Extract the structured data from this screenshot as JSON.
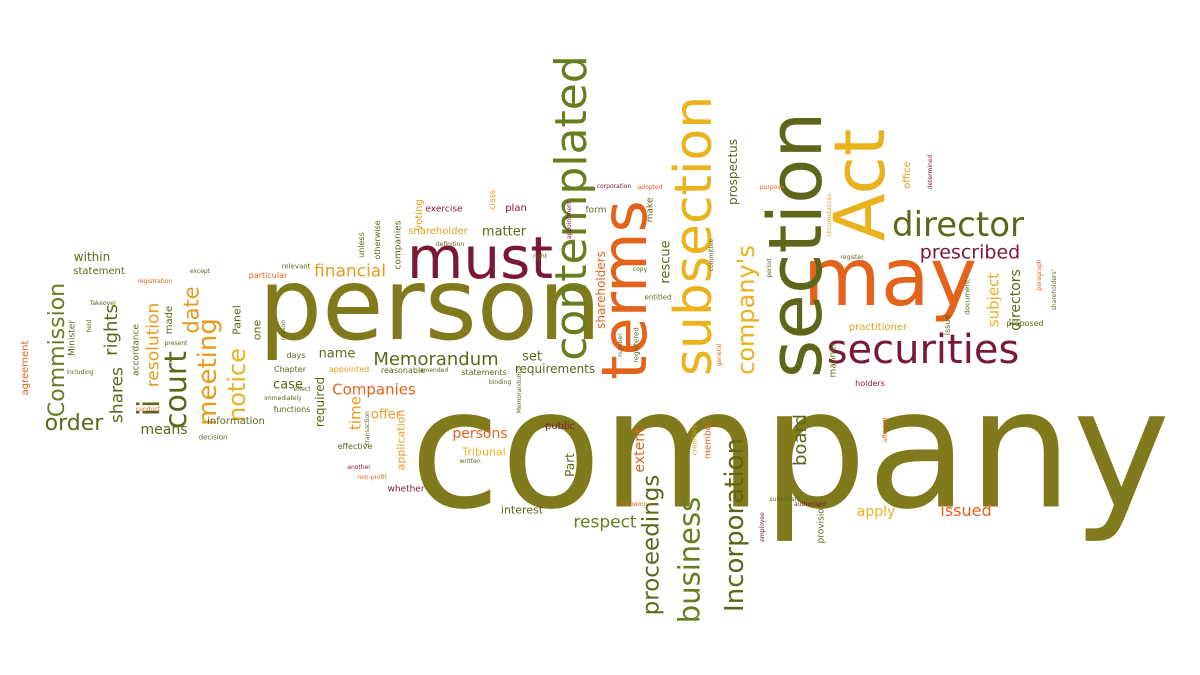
{
  "palette": {
    "olive": "#7f7a1c",
    "dark_olive": "#5e661a",
    "green": "#677e1f",
    "orange": "#e3631a",
    "amber": "#e79b1d",
    "yellow": "#eab21c",
    "maroon": "#7b1935",
    "gray": "#777777"
  },
  "words": [
    {
      "text": "company",
      "color": "olive"
    },
    {
      "text": "person",
      "color": "olive"
    },
    {
      "text": "may",
      "color": "orange"
    },
    {
      "text": "section",
      "color": "dark_olive"
    },
    {
      "text": "Act",
      "color": "yellow"
    },
    {
      "text": "must",
      "color": "maroon"
    },
    {
      "text": "terms",
      "color": "orange"
    },
    {
      "text": "subsection",
      "color": "yellow"
    },
    {
      "text": "contemplated",
      "color": "green"
    },
    {
      "text": "securities",
      "color": "maroon"
    },
    {
      "text": "director",
      "color": "dark_olive"
    },
    {
      "text": "company's",
      "color": "yellow"
    },
    {
      "text": "Incorporation",
      "color": "dark_olive"
    },
    {
      "text": "business",
      "color": "green"
    },
    {
      "text": "proceedings",
      "color": "dark_olive"
    },
    {
      "text": "court",
      "color": "dark_olive"
    },
    {
      "text": "meeting",
      "color": "amber"
    },
    {
      "text": "notice",
      "color": "yellow"
    },
    {
      "text": "Memorandum",
      "color": "dark_olive"
    },
    {
      "text": "Commission",
      "color": "green"
    },
    {
      "text": "prescribed",
      "color": "maroon"
    },
    {
      "text": "financial",
      "color": "amber"
    },
    {
      "text": "Companies",
      "color": "orange"
    },
    {
      "text": "resolution",
      "color": "amber"
    },
    {
      "text": "rights",
      "color": "dark_olive"
    },
    {
      "text": "shares",
      "color": "dark_olive"
    },
    {
      "text": "order",
      "color": "dark_olive"
    },
    {
      "text": "ii",
      "color": "dark_olive"
    },
    {
      "text": "date",
      "color": "amber"
    },
    {
      "text": "time",
      "color": "amber"
    },
    {
      "text": "respect",
      "color": "green"
    },
    {
      "text": "persons",
      "color": "orange"
    },
    {
      "text": "issued",
      "color": "orange"
    },
    {
      "text": "apply",
      "color": "yellow"
    },
    {
      "text": "board",
      "color": "dark_olive"
    },
    {
      "text": "extent",
      "color": "orange"
    },
    {
      "text": "subject",
      "color": "yellow"
    },
    {
      "text": "directors",
      "color": "dark_olive"
    },
    {
      "text": "rescue",
      "color": "dark_olive"
    },
    {
      "text": "shareholders",
      "color": "orange"
    },
    {
      "text": "prospectus",
      "color": "dark_olive"
    },
    {
      "text": "holders",
      "color": "maroon"
    },
    {
      "text": "practitioner",
      "color": "amber"
    },
    {
      "text": "name",
      "color": "dark_olive"
    },
    {
      "text": "case",
      "color": "dark_olive"
    },
    {
      "text": "set",
      "color": "dark_olive"
    },
    {
      "text": "requirements",
      "color": "dark_olive"
    },
    {
      "text": "means",
      "color": "dark_olive"
    },
    {
      "text": "information",
      "color": "dark_olive"
    },
    {
      "text": "application",
      "color": "amber"
    },
    {
      "text": "offer",
      "color": "amber"
    },
    {
      "text": "public",
      "color": "maroon"
    },
    {
      "text": "Tribunal",
      "color": "yellow"
    },
    {
      "text": "Part",
      "color": "dark_olive"
    },
    {
      "text": "interest",
      "color": "dark_olive"
    },
    {
      "text": "whether",
      "color": "maroon"
    },
    {
      "text": "matter",
      "color": "dark_olive"
    },
    {
      "text": "plan",
      "color": "maroon"
    },
    {
      "text": "exercise",
      "color": "maroon"
    },
    {
      "text": "shareholder",
      "color": "amber"
    },
    {
      "text": "voting",
      "color": "amber"
    },
    {
      "text": "companies",
      "color": "dark_olive"
    },
    {
      "text": "otherwise",
      "color": "dark_olive"
    },
    {
      "text": "unless",
      "color": "dark_olive"
    },
    {
      "text": "within",
      "color": "dark_olive"
    },
    {
      "text": "statement",
      "color": "dark_olive"
    },
    {
      "text": "agreement",
      "color": "orange"
    },
    {
      "text": "Minister",
      "color": "dark_olive"
    },
    {
      "text": "accordance",
      "color": "dark_olive"
    },
    {
      "text": "made",
      "color": "dark_olive"
    },
    {
      "text": "Panel",
      "color": "dark_olive"
    },
    {
      "text": "one",
      "color": "dark_olive"
    },
    {
      "text": "Chapter",
      "color": "dark_olive"
    },
    {
      "text": "days",
      "color": "dark_olive"
    },
    {
      "text": "required",
      "color": "dark_olive"
    },
    {
      "text": "functions",
      "color": "dark_olive"
    },
    {
      "text": "appointed",
      "color": "amber"
    },
    {
      "text": "reasonable",
      "color": "dark_olive"
    },
    {
      "text": "statements",
      "color": "dark_olive"
    },
    {
      "text": "effective",
      "color": "dark_olive"
    },
    {
      "text": "form",
      "color": "dark_olive"
    },
    {
      "text": "make",
      "color": "dark_olive"
    },
    {
      "text": "entitled",
      "color": "dark_olive"
    },
    {
      "text": "registered",
      "color": "dark_olive"
    },
    {
      "text": "manner",
      "color": "dark_olive"
    },
    {
      "text": "proposed",
      "color": "dark_olive"
    },
    {
      "text": "issue",
      "color": "dark_olive"
    },
    {
      "text": "office",
      "color": "amber"
    },
    {
      "text": "document",
      "color": "dark_olive"
    },
    {
      "text": "provision",
      "color": "dark_olive"
    },
    {
      "text": "member",
      "color": "orange"
    },
    {
      "text": "creditors",
      "color": "amber"
    },
    {
      "text": "particular",
      "color": "orange"
    },
    {
      "text": "relevant",
      "color": "dark_olive"
    },
    {
      "text": "decision",
      "color": "dark_olive"
    },
    {
      "text": "register",
      "color": "dark_olive"
    },
    {
      "text": "paragraph",
      "color": "orange"
    },
    {
      "text": "corporation",
      "color": "maroon"
    },
    {
      "text": "appointment",
      "color": "maroon"
    },
    {
      "text": "right",
      "color": "dark_olive"
    },
    {
      "text": "copy",
      "color": "dark_olive"
    },
    {
      "text": "committee",
      "color": "dark_olive"
    },
    {
      "text": "period",
      "color": "dark_olive"
    },
    {
      "text": "except",
      "color": "dark_olive"
    },
    {
      "text": "registration",
      "color": "orange"
    },
    {
      "text": "Takeover",
      "color": "dark_olive"
    },
    {
      "text": "held",
      "color": "dark_olive"
    },
    {
      "text": "including",
      "color": "dark_olive"
    },
    {
      "text": "present",
      "color": "dark_olive"
    },
    {
      "text": "conduct",
      "color": "orange"
    },
    {
      "text": "effect",
      "color": "dark_olive"
    },
    {
      "text": "immediately",
      "color": "dark_olive"
    },
    {
      "text": "transaction",
      "color": "dark_olive"
    },
    {
      "text": "another",
      "color": "maroon"
    },
    {
      "text": "non-profit",
      "color": "orange"
    },
    {
      "text": "amended",
      "color": "dark_olive"
    },
    {
      "text": "written",
      "color": "dark_olive"
    },
    {
      "text": "purpose",
      "color": "orange"
    },
    {
      "text": "following",
      "color": "orange"
    },
    {
      "text": "general",
      "color": "orange"
    },
    {
      "text": "adopted",
      "color": "orange"
    },
    {
      "text": "affected",
      "color": "orange"
    },
    {
      "text": "determined",
      "color": "maroon"
    },
    {
      "text": "circumstances",
      "color": "amber"
    },
    {
      "text": "authorised",
      "color": "maroon"
    },
    {
      "text": "employee",
      "color": "maroon"
    },
    {
      "text": "class",
      "color": "amber"
    },
    {
      "text": "definition",
      "color": "dark_olive"
    },
    {
      "text": "binding",
      "color": "dark_olive"
    },
    {
      "text": "reason",
      "color": "dark_olive"
    },
    {
      "text": "number",
      "color": "dark_olive"
    },
    {
      "text": "subsidiary",
      "color": "dark_olive"
    },
    {
      "text": "Memorandum's",
      "color": "dark_olive"
    },
    {
      "text": "shareholders'",
      "color": "dark_olive"
    }
  ]
}
